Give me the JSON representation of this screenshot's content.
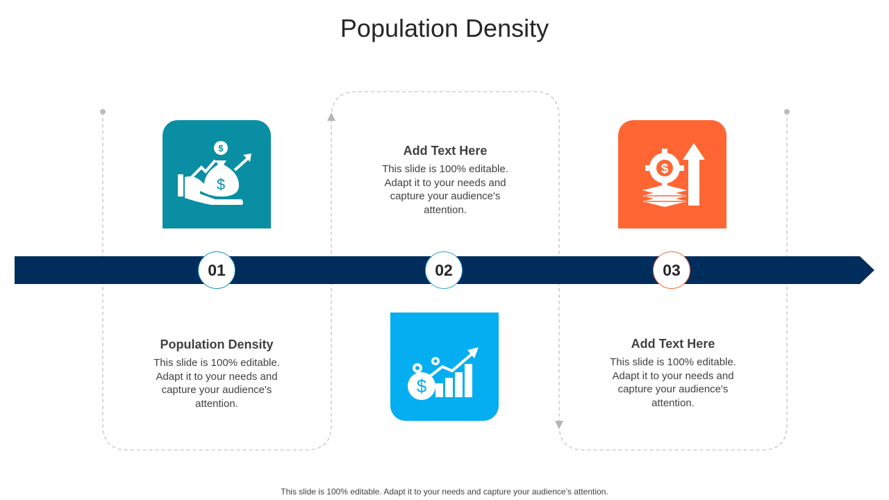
{
  "title": "Population Density",
  "colors": {
    "arrow": "#002d5c",
    "tile_1": "#0a8ea3",
    "tile_2": "#04aef0",
    "tile_3": "#ff6633",
    "guide": "#c4c4c4"
  },
  "steps": [
    {
      "number": "01",
      "heading": "Population Density",
      "body": "This slide is 100% editable. Adapt it to your needs and capture your audience's attention.",
      "icon": "money-bag-hand-growth-icon"
    },
    {
      "number": "02",
      "heading": "Add Text Here",
      "body": "This slide is 100% editable. Adapt it to your needs and capture your audience's attention.",
      "icon": "dollar-bar-chart-growth-icon"
    },
    {
      "number": "03",
      "heading": "Add Text Here",
      "body": "This slide is 100% editable. Adapt it to your needs and capture your audience's attention.",
      "icon": "gear-dollar-money-stack-up-arrow-icon"
    }
  ],
  "footer": "This slide is 100% editable. Adapt it to your needs and capture your audience’s attention."
}
